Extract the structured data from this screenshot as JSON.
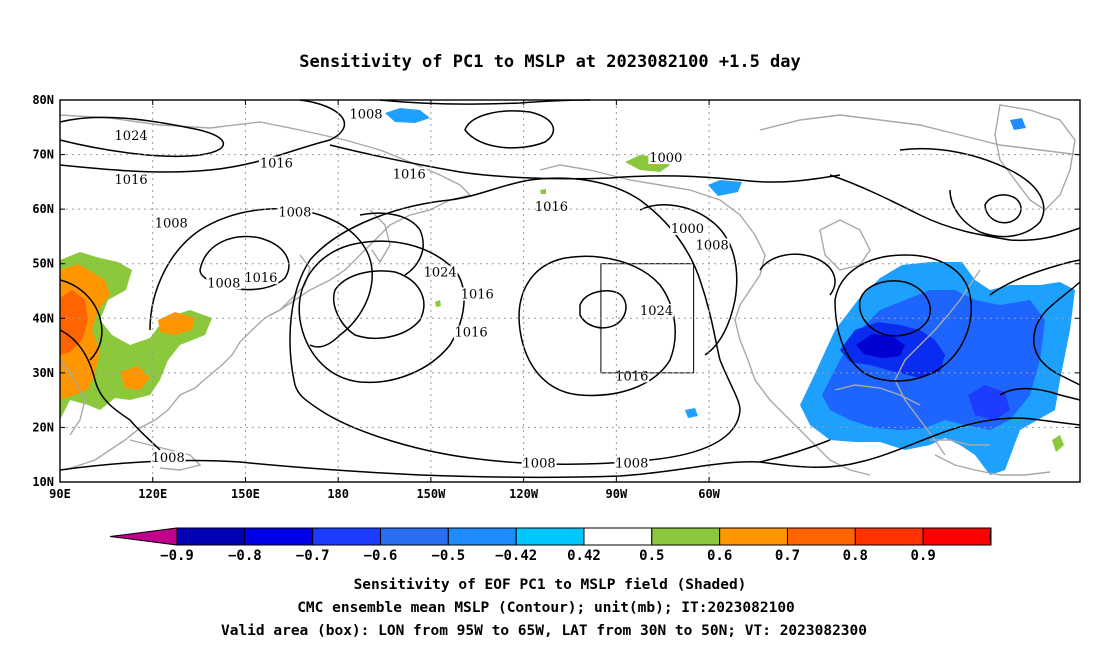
{
  "title": "Sensitivity of PC1 to MSLP at 2023082100 +1.5 day",
  "lat_labels": [
    "80N",
    "70N",
    "60N",
    "50N",
    "40N",
    "30N",
    "20N",
    "10N"
  ],
  "lon_labels": [
    "90E",
    "120E",
    "150E",
    "180",
    "150W",
    "120W",
    "90W",
    "60W"
  ],
  "contour_labels": [
    {
      "text": "1008",
      "lon": -171,
      "lat": 77
    },
    {
      "text": "1024",
      "lon": 113,
      "lat": 73
    },
    {
      "text": "1016",
      "lon": 160,
      "lat": 68
    },
    {
      "text": "1016",
      "lon": -157,
      "lat": 66
    },
    {
      "text": "1000",
      "lon": -74,
      "lat": 69
    },
    {
      "text": "1016",
      "lon": 113,
      "lat": 65
    },
    {
      "text": "1008",
      "lon": 166,
      "lat": 59
    },
    {
      "text": "1016",
      "lon": -111,
      "lat": 60
    },
    {
      "text": "1000",
      "lon": -67,
      "lat": 56
    },
    {
      "text": "1008",
      "lon": -59,
      "lat": 53
    },
    {
      "text": "1008",
      "lon": 126,
      "lat": 57
    },
    {
      "text": "1024",
      "lon": -147,
      "lat": 48
    },
    {
      "text": "1008",
      "lon": 143,
      "lat": 46
    },
    {
      "text": "1016",
      "lon": -135,
      "lat": 44
    },
    {
      "text": "1016",
      "lon": 155,
      "lat": 47
    },
    {
      "text": "1016",
      "lon": -137,
      "lat": 37
    },
    {
      "text": "1024",
      "lon": -77,
      "lat": 41
    },
    {
      "text": "1016",
      "lon": -85,
      "lat": 29
    },
    {
      "text": "1008",
      "lon": 125,
      "lat": 14
    },
    {
      "text": "1008",
      "lon": -115,
      "lat": 13
    },
    {
      "text": "1008",
      "lon": -85,
      "lat": 13
    }
  ],
  "colorbar": {
    "labels": [
      "-0.9",
      "-0.8",
      "-0.7",
      "-0.6",
      "-0.5",
      "-0.42",
      "0.42",
      "0.5",
      "0.6",
      "0.7",
      "0.8",
      "0.9"
    ],
    "colors": [
      "#c0008c",
      "#0000b4",
      "#0000e6",
      "#1e3cff",
      "#2a6ef0",
      "#1e8cff",
      "#00c8ff",
      "#ffffff",
      "#8cc83c",
      "#ff9600",
      "#ff6400",
      "#ff3200",
      "#ff0000",
      "#ff96c8"
    ]
  },
  "valid_box": {
    "lon_w": -95,
    "lon_e": -65,
    "lat_s": 30,
    "lat_n": 50
  },
  "caption": [
    "Sensitivity of EOF PC1 to MSLP field (Shaded)",
    "CMC ensemble mean MSLP (Contour); unit(mb); IT:2023082100",
    "Valid area (box): LON from 95W to 65W, LAT from 30N to 50N; VT: 2023082300"
  ]
}
